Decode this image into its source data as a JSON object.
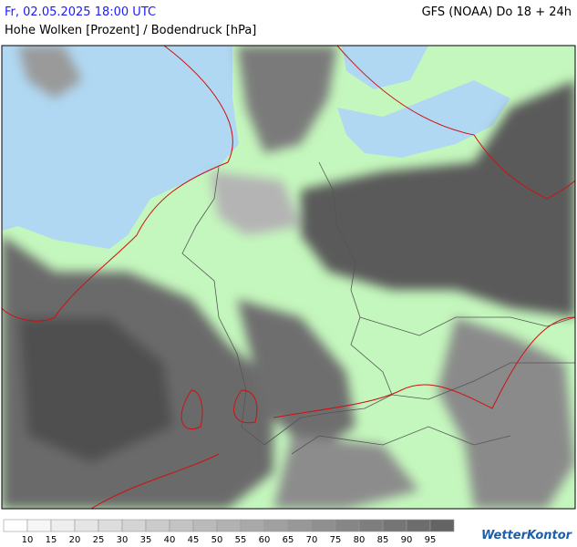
{
  "header": {
    "datetime": "Fr, 02.05.2025 18:00 UTC",
    "model": "GFS (NOAA) Do 18 + 24h",
    "title": "Hohe Wolken [Prozent] / Bodendruck [hPa]"
  },
  "legend": {
    "labels": [
      10,
      15,
      20,
      25,
      30,
      35,
      40,
      45,
      50,
      55,
      60,
      65,
      70,
      75,
      80,
      85,
      90,
      95
    ]
  },
  "logo": "WetterKontor"
}
